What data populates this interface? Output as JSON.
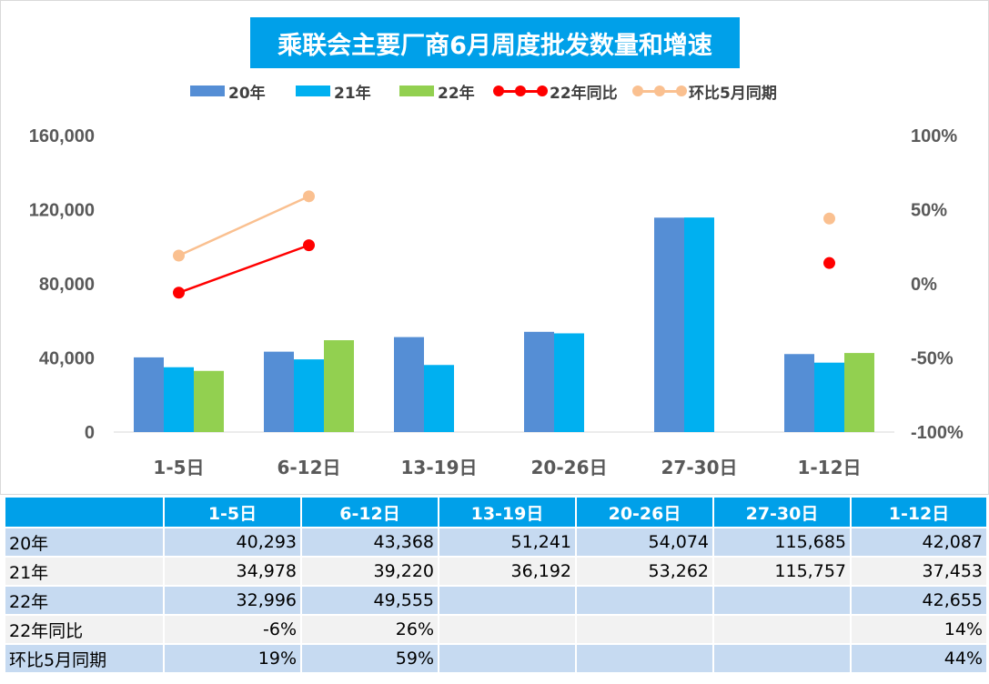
{
  "chart_data": {
    "type": "bar",
    "title": "乘联会主要厂商6月周度批发数量和增速",
    "categories": [
      "1-5日",
      "6-12日",
      "13-19日",
      "20-26日",
      "27-30日",
      "1-12日"
    ],
    "series": [
      {
        "name": "20年",
        "type": "bar",
        "axis": "left",
        "color": "#558ed5",
        "values": [
          40293,
          43368,
          51241,
          54074,
          115685,
          42087
        ]
      },
      {
        "name": "21年",
        "type": "bar",
        "axis": "left",
        "color": "#00b0f0",
        "values": [
          34978,
          39220,
          36192,
          53262,
          115757,
          37453
        ]
      },
      {
        "name": "22年",
        "type": "bar",
        "axis": "left",
        "color": "#92d050",
        "values": [
          32996,
          49555,
          null,
          null,
          null,
          42655
        ]
      },
      {
        "name": "22年同比",
        "type": "line",
        "axis": "right",
        "color": "#ff0000",
        "values": [
          -6,
          26,
          null,
          null,
          null,
          14
        ]
      },
      {
        "name": "环比5月同期",
        "type": "line",
        "axis": "right",
        "color": "#fac090",
        "values": [
          19,
          59,
          null,
          null,
          null,
          44
        ]
      }
    ],
    "y_left": {
      "min": 0,
      "max": 160000,
      "ticks": [
        "0",
        "40,000",
        "80,000",
        "120,000",
        "160,000"
      ]
    },
    "y_right": {
      "min": -100,
      "max": 100,
      "unit": "%",
      "ticks": [
        "-100%",
        "-50%",
        "0%",
        "50%",
        "100%"
      ]
    },
    "legend_position": "top",
    "grid": false
  },
  "table": {
    "header": [
      "",
      "1-5日",
      "6-12日",
      "13-19日",
      "20-26日",
      "27-30日",
      "1-12日"
    ],
    "rows": [
      [
        "20年",
        "40,293",
        "43,368",
        "51,241",
        "54,074",
        "115,685",
        "42,087"
      ],
      [
        "21年",
        "34,978",
        "39,220",
        "36,192",
        "53,262",
        "115,757",
        "37,453"
      ],
      [
        "22年",
        "32,996",
        "49,555",
        "",
        "",
        "",
        "42,655"
      ],
      [
        "22年同比",
        "-6%",
        "26%",
        "",
        "",
        "",
        "14%"
      ],
      [
        "环比5月同期",
        "19%",
        "59%",
        "",
        "",
        "",
        "44%"
      ]
    ]
  },
  "colors": {
    "title_bg": "#00a0e9",
    "header_bg": "#00a0e9",
    "row_band_a": "#c6daf1",
    "row_band_b": "#f2f2f2"
  }
}
